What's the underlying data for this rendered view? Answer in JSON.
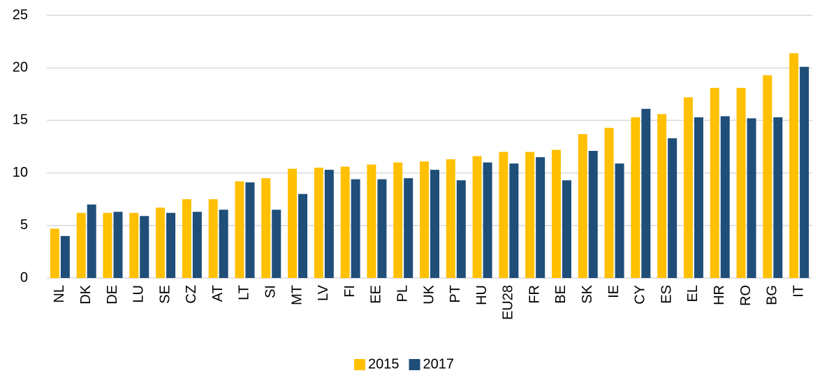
{
  "chart_data": {
    "type": "bar",
    "categories": [
      "NL",
      "DK",
      "DE",
      "LU",
      "SE",
      "CZ",
      "AT",
      "LT",
      "SI",
      "MT",
      "LV",
      "FI",
      "EE",
      "PL",
      "UK",
      "PT",
      "HU",
      "EU28",
      "FR",
      "BE",
      "SK",
      "IE",
      "CY",
      "ES",
      "EL",
      "HR",
      "RO",
      "BG",
      "IT"
    ],
    "series": [
      {
        "name": "2015",
        "color": "#FFC000",
        "values": [
          4.7,
          6.2,
          6.2,
          6.2,
          6.7,
          7.5,
          7.5,
          9.2,
          9.5,
          10.4,
          10.5,
          10.6,
          10.8,
          11.0,
          11.1,
          11.3,
          11.6,
          12.0,
          12.0,
          12.2,
          13.7,
          14.3,
          15.3,
          15.6,
          17.2,
          18.1,
          18.1,
          19.3,
          21.4
        ]
      },
      {
        "name": "2017",
        "color": "#1F4E79",
        "values": [
          4.0,
          7.0,
          6.3,
          5.9,
          6.2,
          6.3,
          6.5,
          9.1,
          6.5,
          8.0,
          10.3,
          9.4,
          9.4,
          9.5,
          10.3,
          9.3,
          11.0,
          10.9,
          11.5,
          9.3,
          12.1,
          10.9,
          16.1,
          13.3,
          15.3,
          15.4,
          15.2,
          15.3,
          20.1
        ]
      }
    ],
    "ylim": [
      0,
      25
    ],
    "yticks": [
      0,
      5,
      10,
      15,
      20,
      25
    ],
    "grid": true,
    "legend": "bottom"
  }
}
